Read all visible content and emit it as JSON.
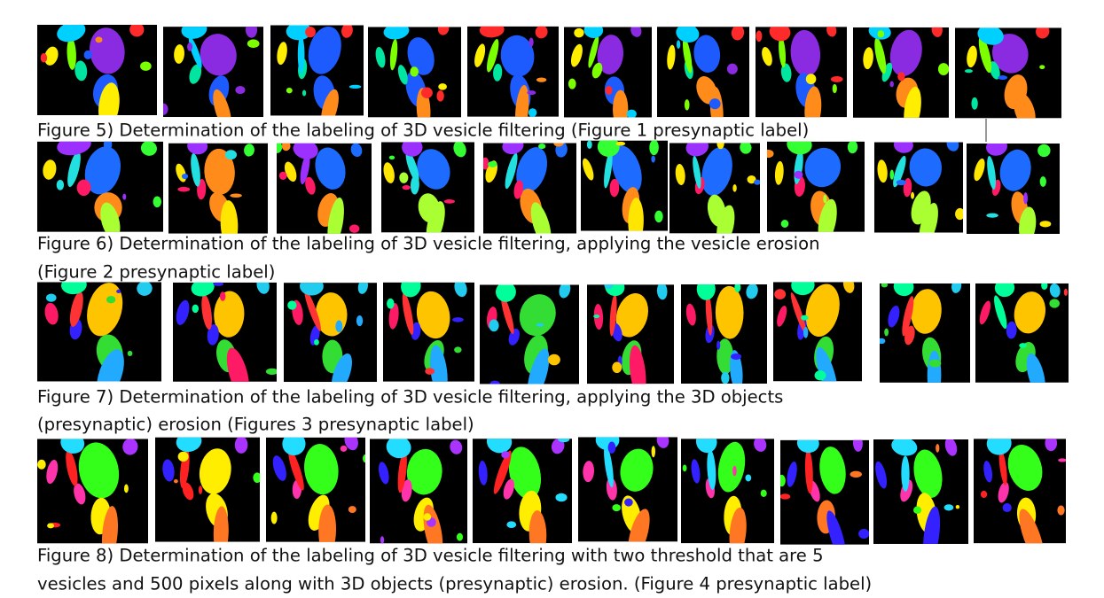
{
  "figures": [
    {
      "caption_lines": [
        "Figure 5) Determination of the labeling of 3D vesicle filtering (Figure 1 presynaptic label)"
      ]
    },
    {
      "caption_lines": [
        "Figure 6) Determination of the labeling of 3D vesicle filtering, applying the vesicle erosion",
        "(Figure 2 presynaptic label)"
      ]
    },
    {
      "caption_lines": [
        "Figure 7) Determination of the labeling of 3D vesicle filtering, applying the 3D objects",
        "(presynaptic) erosion (Figures 3 presynaptic label)"
      ]
    },
    {
      "caption_lines": [
        "Figure 8) Determination of the labeling of 3D vesicle filtering with two threshold that are 5",
        "vesicles and 500 pixels along with 3D objects (presynaptic) erosion. (Figure 4 presynaptic label)"
      ]
    }
  ]
}
